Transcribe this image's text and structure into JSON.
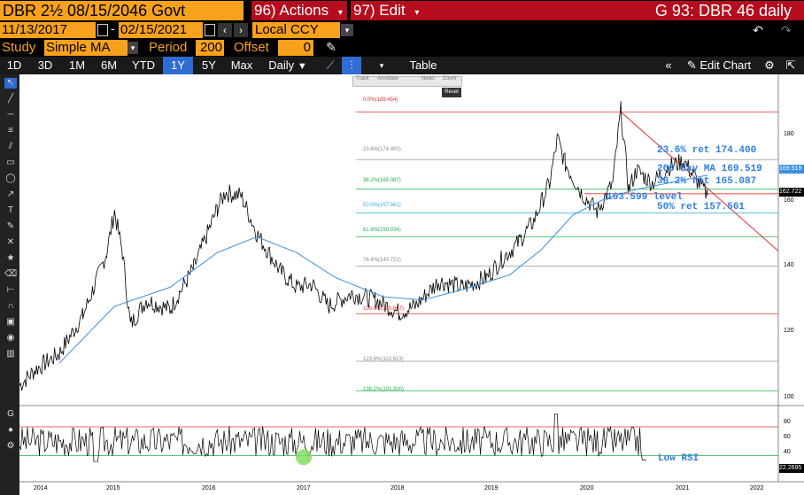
{
  "header": {
    "security": "DBR 2½ 08/15/2046 Govt",
    "actions_label": "96) Actions",
    "edit_label": "97) Edit",
    "title": "G 93: DBR 46 daily"
  },
  "date_range": {
    "start": "11/13/2017",
    "end": "02/15/2021",
    "currency": "Local CCY"
  },
  "study": {
    "label": "Study",
    "value": "Simple MA",
    "period_label": "Period",
    "period_value": "200",
    "offset_label": "Offset",
    "offset_value": "0"
  },
  "toolbar": {
    "ranges": [
      "1D",
      "3D",
      "1M",
      "6M",
      "YTD",
      "1Y",
      "5Y",
      "Max"
    ],
    "active_range": "1Y",
    "frequency": "Daily",
    "table_label": "Table",
    "edit_chart_label": "Edit Chart"
  },
  "mini_toolbar": {
    "items": [
      "Track",
      "Annotate",
      "News",
      "Zoom"
    ],
    "reset_label": "Reset"
  },
  "colors": {
    "accent_orange": "#f7a11c",
    "header_red": "#b50d1d",
    "active_blue": "#2f6cd3",
    "ma_line": "#3d8fe0",
    "fib_red": "#e03030",
    "fib_green": "#22b14c",
    "fib_cyan": "#33aadd"
  },
  "icons": [
    "undo-icon",
    "redo-icon",
    "pencil-icon",
    "calendar-icon",
    "chevron-left-icon",
    "chevron-right-icon",
    "dropdown-arrow-icon",
    "line-chart-icon",
    "candle-chart-icon",
    "collapse-icon",
    "settings-icon",
    "export-icon"
  ],
  "chart_data": [
    {
      "type": "line",
      "series": [
        {
          "values": [
            {
              "x": "2013-11",
              "y": 103
            },
            {
              "x": "2014-01",
              "y": 108
            },
            {
              "x": "2014-04",
              "y": 113
            },
            {
              "x": "2014-07",
              "y": 125
            },
            {
              "x": "2014-09",
              "y": 138
            },
            {
              "x": "2014-10",
              "y": 145
            },
            {
              "x": "2014-11",
              "y": 158
            },
            {
              "x": "2014-12",
              "y": 145
            },
            {
              "x": "2015-01",
              "y": 122
            },
            {
              "x": "2015-03",
              "y": 130
            },
            {
              "x": "2015-06",
              "y": 127
            },
            {
              "x": "2015-09",
              "y": 140
            },
            {
              "x": "2015-12",
              "y": 159
            },
            {
              "x": "2016-01",
              "y": 164
            },
            {
              "x": "2016-03",
              "y": 163
            },
            {
              "x": "2016-05",
              "y": 151
            },
            {
              "x": "2016-08",
              "y": 139
            },
            {
              "x": "2016-10",
              "y": 134
            },
            {
              "x": "2016-12",
              "y": 135
            },
            {
              "x": "2017-02",
              "y": 128
            },
            {
              "x": "2017-05",
              "y": 132
            },
            {
              "x": "2017-08",
              "y": 130
            },
            {
              "x": "2017-11",
              "y": 126
            },
            {
              "x": "2018-01",
              "y": 128
            },
            {
              "x": "2018-04",
              "y": 136
            },
            {
              "x": "2018-07",
              "y": 134
            },
            {
              "x": "2018-10",
              "y": 137
            },
            {
              "x": "2018-12",
              "y": 143
            },
            {
              "x": "2019-02",
              "y": 148
            },
            {
              "x": "2019-04",
              "y": 155
            },
            {
              "x": "2019-06",
              "y": 167
            },
            {
              "x": "2019-07",
              "y": 181
            },
            {
              "x": "2019-08",
              "y": 173
            },
            {
              "x": "2019-10",
              "y": 164
            },
            {
              "x": "2019-12",
              "y": 158
            },
            {
              "x": "2020-02",
              "y": 167
            },
            {
              "x": "2020-03",
              "y": 190
            },
            {
              "x": "2020-04",
              "y": 165
            },
            {
              "x": "2020-05",
              "y": 171
            },
            {
              "x": "2020-07",
              "y": 167
            },
            {
              "x": "2020-09",
              "y": 172
            },
            {
              "x": "2020-11",
              "y": 174
            },
            {
              "x": "2020-12",
              "y": 170
            },
            {
              "x": "2021-02",
              "y": 163
            }
          ]
        },
        {
          "values": [
            {
              "x": "2014-04",
              "y": 110
            },
            {
              "x": "2014-11",
              "y": 128
            },
            {
              "x": "2015-06",
              "y": 134
            },
            {
              "x": "2015-12",
              "y": 145
            },
            {
              "x": "2016-05",
              "y": 150
            },
            {
              "x": "2016-10",
              "y": 145
            },
            {
              "x": "2017-03",
              "y": 137
            },
            {
              "x": "2017-09",
              "y": 131
            },
            {
              "x": "2018-02",
              "y": 130
            },
            {
              "x": "2018-08",
              "y": 134
            },
            {
              "x": "2019-01",
              "y": 138
            },
            {
              "x": "2019-05",
              "y": 146
            },
            {
              "x": "2019-09",
              "y": 157
            },
            {
              "x": "2020-01",
              "y": 162
            },
            {
              "x": "2020-05",
              "y": 165
            },
            {
              "x": "2020-09",
              "y": 167
            },
            {
              "x": "2021-02",
              "y": 169.519
            }
          ]
        }
      ],
      "x_ticks": [
        "2014",
        "2015",
        "2016",
        "2017",
        "2018",
        "2019",
        "2020",
        "2021",
        "2022"
      ],
      "y_ticks": [
        100,
        120,
        140,
        160,
        180
      ],
      "ylim": [
        98,
        191
      ],
      "right_labels": [
        "169.519",
        "162.722"
      ],
      "fib_levels": [
        {
          "label": "0.0%(189.454)",
          "value": 189.454
        },
        {
          "label": "23.6%(174.400)",
          "value": 174.4
        },
        {
          "label": "38.2%(165.087)",
          "value": 165.087
        },
        {
          "label": "50.0%(157.561)",
          "value": 157.561
        },
        {
          "label": "61.8%(150.034)",
          "value": 150.034
        },
        {
          "label": "76.4%(140.721)",
          "value": 140.721
        },
        {
          "label": "100.0%(125.667)",
          "value": 125.667
        },
        {
          "label": "123.6%(110.613)",
          "value": 110.613
        },
        {
          "label": "138.2%(101.300)",
          "value": 101.3
        }
      ],
      "annotations": [
        "23.6% ret 174.400",
        "200 day MA 169.519",
        "38.2% ret 165.087",
        "163.599 level",
        "50% ret 157.561"
      ],
      "support_level": 163.599,
      "grid": false
    },
    {
      "type": "line",
      "y_ticks": [
        20,
        40,
        60,
        80
      ],
      "ylim": [
        10,
        92
      ],
      "hlines": [
        70,
        30
      ],
      "current_value": "22.2695",
      "annotations": [
        "Low RSI"
      ]
    }
  ]
}
